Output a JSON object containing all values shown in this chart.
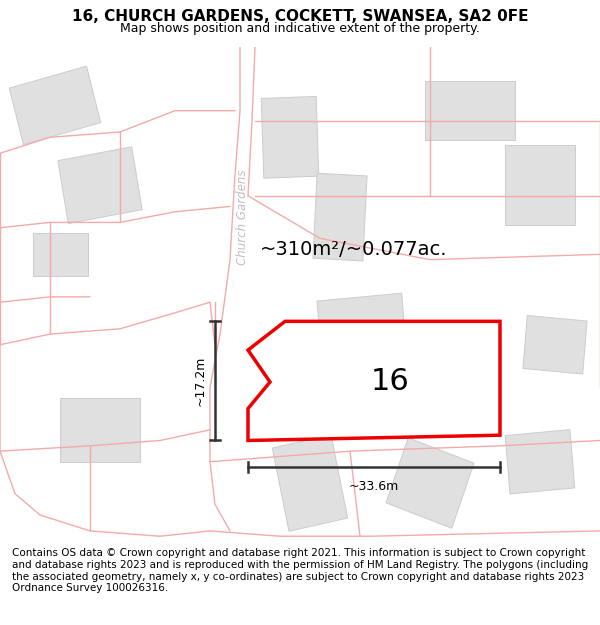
{
  "title": "16, CHURCH GARDENS, COCKETT, SWANSEA, SA2 0FE",
  "subtitle": "Map shows position and indicative extent of the property.",
  "footer": "Contains OS data © Crown copyright and database right 2021. This information is subject to Crown copyright and database rights 2023 and is reproduced with the permission of HM Land Registry. The polygons (including the associated geometry, namely x, y co-ordinates) are subject to Crown copyright and database rights 2023 Ordnance Survey 100026316.",
  "bg_color": "#ffffff",
  "map_bg": "#f7f7f7",
  "title_fontsize": 11,
  "subtitle_fontsize": 9,
  "footer_fontsize": 7.5,
  "area_text": "~310m²/~0.077ac.",
  "dim_width": "~33.6m",
  "dim_height": "~17.2m",
  "plot_number": "16",
  "red_color": "#ee0000",
  "road_label": "Church Gardens",
  "outline_color": "#f5aaaa",
  "building_color": "#e0e0e0",
  "building_edge": "#cccccc",
  "dim_color": "#333333"
}
